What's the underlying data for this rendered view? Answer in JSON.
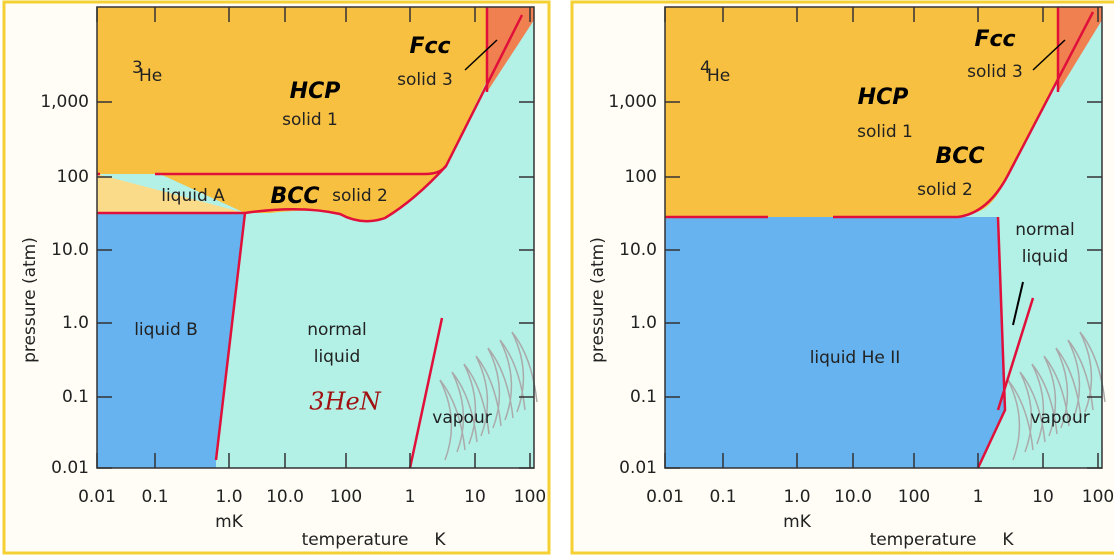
{
  "panels": [
    {
      "isotope": {
        "mass": "3",
        "element": "He"
      },
      "y_axis": {
        "label": "pressure (atm)",
        "ticks": [
          "1,000",
          "100",
          "10.0",
          "1.0",
          "0.1",
          "0.01"
        ]
      },
      "x_axis": {
        "label": "temperature",
        "ticks": [
          "0.01",
          "0.1",
          "1.0",
          "10.0",
          "100",
          "1",
          "10",
          "100"
        ],
        "units": [
          "mK",
          "K"
        ]
      },
      "labels": [
        "solid 1",
        "solid 3",
        "liquid A",
        "solid 2",
        "liquid B",
        "normal",
        "liquid",
        "vapour"
      ],
      "annotations": [
        "HCP",
        "Fcc",
        "BCC",
        "3HeN"
      ]
    },
    {
      "isotope": {
        "mass": "4",
        "element": "He"
      },
      "y_axis": {
        "label": "pressure (atm)",
        "ticks": [
          "1,000",
          "100",
          "10.0",
          "1.0",
          "0.1",
          "0.01"
        ]
      },
      "x_axis": {
        "label": "temperature",
        "ticks": [
          "0.01",
          "0.1",
          "1.0",
          "10.0",
          "100",
          "1",
          "10",
          "100"
        ],
        "units": [
          "mK",
          "K"
        ]
      },
      "labels": [
        "solid 1",
        "solid 3",
        "solid 2",
        "normal",
        "liquid",
        "liquid He II",
        "vapour"
      ],
      "annotations": [
        "HCP",
        "Fcc",
        "BCC"
      ]
    }
  ]
}
